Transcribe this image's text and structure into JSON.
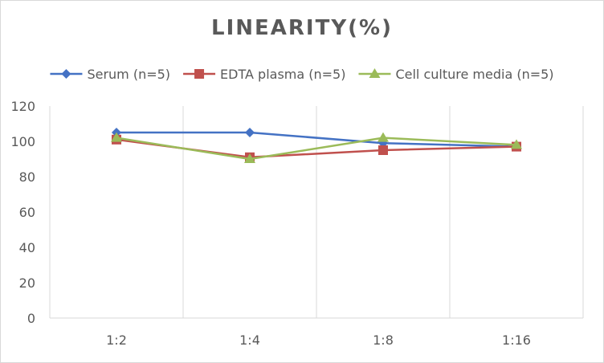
{
  "chart_data": {
    "type": "line",
    "title": "LINEARITY(%)",
    "categories": [
      "1:2",
      "1:4",
      "1:8",
      "1:16"
    ],
    "series": [
      {
        "name": "Serum (n=5)",
        "values": [
          105,
          105,
          99,
          97
        ],
        "color": "#4472C4",
        "marker": "diamond"
      },
      {
        "name": "EDTA plasma (n=5)",
        "values": [
          101,
          91,
          95,
          97
        ],
        "color": "#C0504D",
        "marker": "square"
      },
      {
        "name": "Cell culture media (n=5)",
        "values": [
          102,
          90,
          102,
          98
        ],
        "color": "#9BBB59",
        "marker": "triangle"
      }
    ],
    "xlabel": "",
    "ylabel": "",
    "ylim": [
      0,
      120
    ],
    "yticks": [
      "0",
      "20",
      "40",
      "60",
      "80",
      "100",
      "120"
    ],
    "grid": "vertical",
    "legend": "top"
  }
}
